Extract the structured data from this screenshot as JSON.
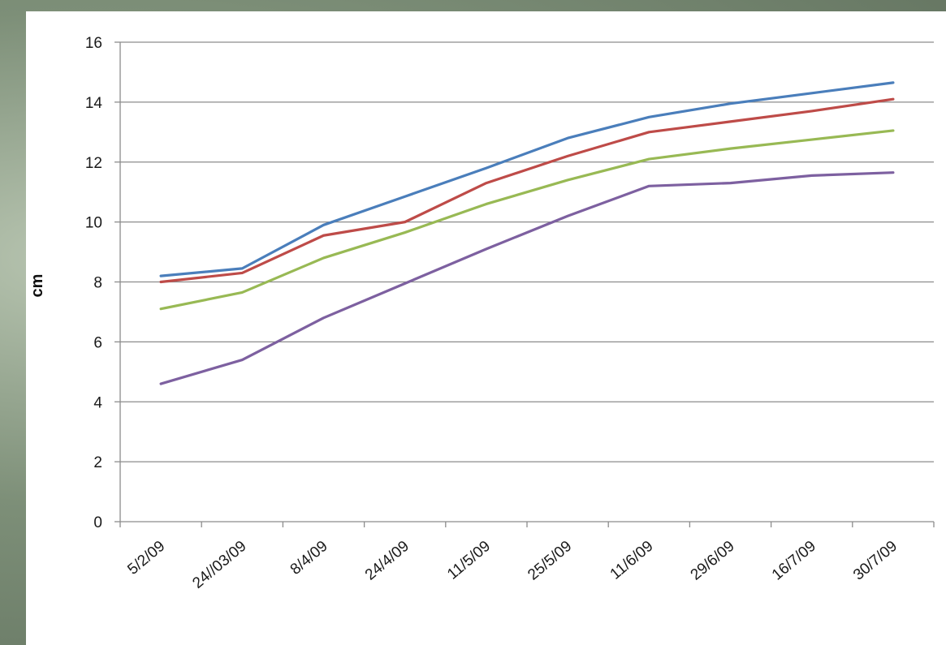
{
  "chart_data": {
    "type": "line",
    "title": "",
    "xlabel": "",
    "ylabel": "cm",
    "ylim": [
      0,
      16
    ],
    "yticks": [
      "0",
      "2",
      "4",
      "6",
      "8",
      "10",
      "12",
      "14",
      "16"
    ],
    "grid": true,
    "categories": [
      "5/2/09",
      "24//03/09",
      "8/4/09",
      "24/4/09",
      "11/5/09",
      "25/5/09",
      "11/6/09",
      "29/6/09",
      "16/7/09",
      "30/7/09"
    ],
    "series": [
      {
        "color": "#4a7ebb",
        "values": [
          8.2,
          8.45,
          9.9,
          10.85,
          11.8,
          12.8,
          13.5,
          13.95,
          14.3,
          14.65
        ]
      },
      {
        "color": "#be4b48",
        "values": [
          8.0,
          8.3,
          9.55,
          10.0,
          11.3,
          12.2,
          13.0,
          13.35,
          13.7,
          14.1
        ]
      },
      {
        "color": "#98b954",
        "values": [
          7.1,
          7.65,
          8.8,
          9.65,
          10.6,
          11.4,
          12.1,
          12.45,
          12.75,
          13.05
        ]
      },
      {
        "color": "#7d60a0",
        "values": [
          4.6,
          5.4,
          6.8,
          7.95,
          9.1,
          10.2,
          11.2,
          11.3,
          11.55,
          11.65
        ]
      }
    ]
  }
}
